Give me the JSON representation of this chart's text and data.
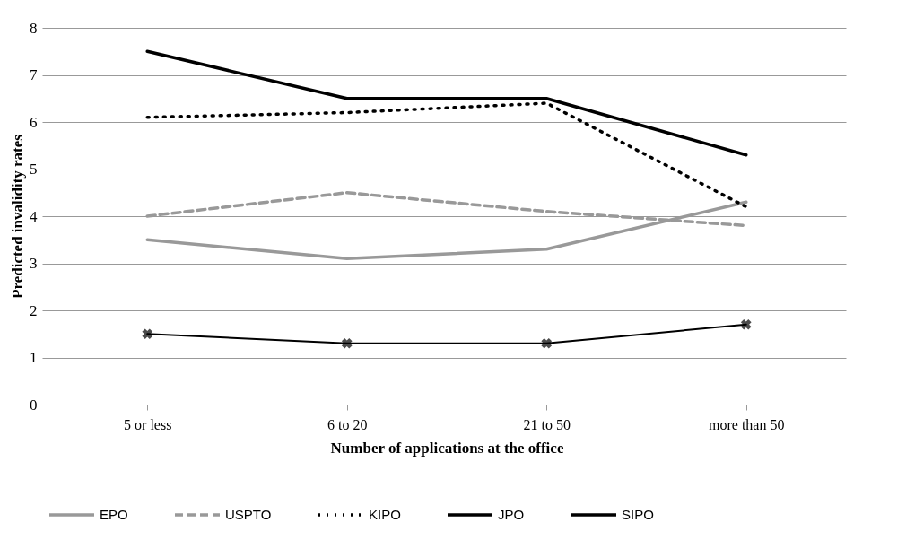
{
  "chart_data": {
    "type": "line",
    "xlabel": "Number of applications at the office",
    "ylabel": "Predicted invalidity rates",
    "categories": [
      "5 or less",
      "6 to 20",
      "21 to 50",
      "more than 50"
    ],
    "ylim": [
      0,
      8
    ],
    "yticks": [
      0,
      1,
      2,
      3,
      4,
      5,
      6,
      7,
      8
    ],
    "grid": "y",
    "legend": "bottom",
    "series": [
      {
        "name": "EPO",
        "color": "#999999",
        "line_style": "solid",
        "values": [
          3.5,
          3.1,
          3.3,
          4.3
        ]
      },
      {
        "name": "USPTO",
        "color": "#999999",
        "line_style": "dashed",
        "values": [
          4.0,
          4.5,
          4.1,
          3.8
        ]
      },
      {
        "name": "KIPO",
        "color": "#000000",
        "line_style": "dotted",
        "values": [
          6.1,
          6.2,
          6.4,
          4.2
        ]
      },
      {
        "name": "JPO",
        "color": "#000000",
        "line_style": "solid",
        "values": [
          7.5,
          6.5,
          6.5,
          5.3
        ]
      },
      {
        "name": "SIPO",
        "color": "#000000",
        "line_style": "solid",
        "marker": "cross",
        "values": [
          1.5,
          1.3,
          1.3,
          1.7
        ]
      }
    ]
  }
}
